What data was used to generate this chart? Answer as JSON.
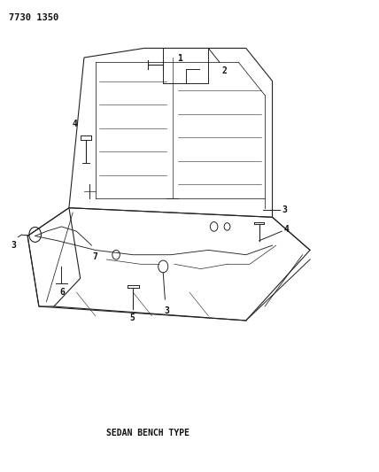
{
  "title_code": "7730 1350",
  "caption": "SEDAN BENCH TYPE",
  "bg_color": "#ffffff",
  "line_color": "#222222",
  "label_color": "#111111",
  "figsize": [
    4.28,
    5.33
  ],
  "dpi": 100
}
